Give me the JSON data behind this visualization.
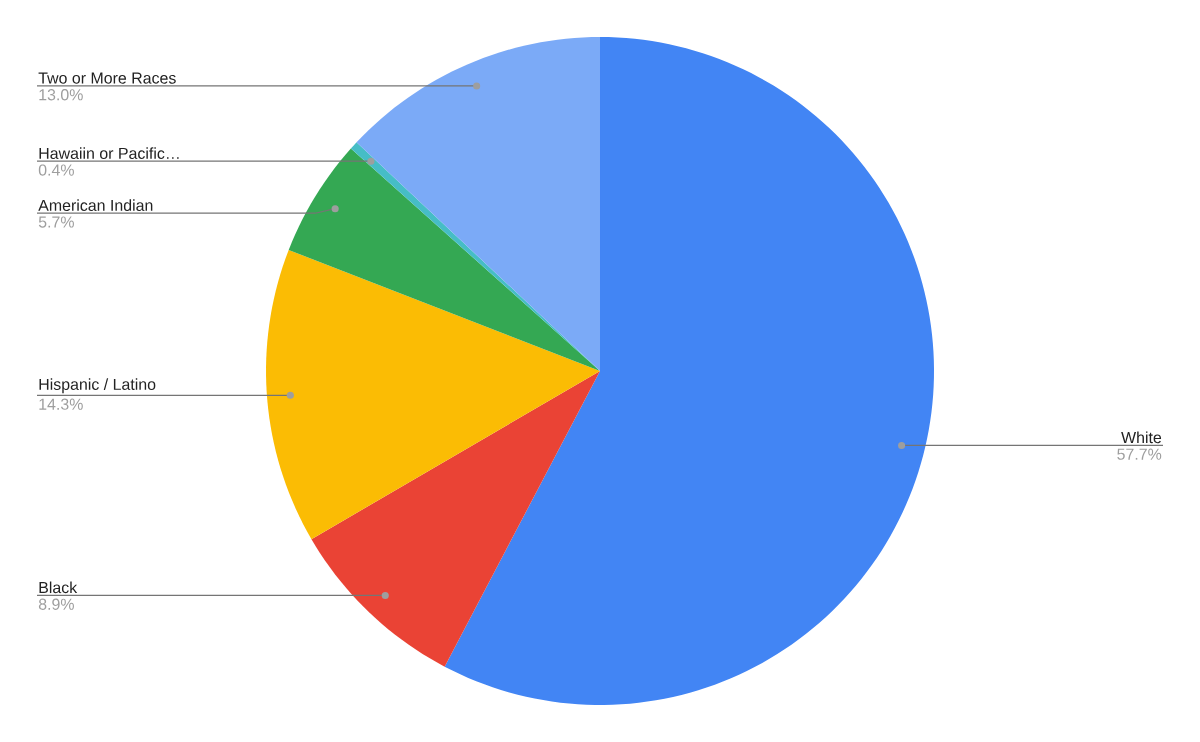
{
  "chart_data": {
    "type": "pie",
    "categories": [
      "White",
      "Black",
      "Hispanic / Latino",
      "American Indian",
      "Hawaiin or Pacific…",
      "Two or More Races"
    ],
    "values": [
      57.7,
      8.9,
      14.3,
      5.7,
      0.4,
      13.0
    ],
    "colors": [
      "#4285f4",
      "#ea4335",
      "#fbbc04",
      "#34a853",
      "#46bdc6",
      "#7baaf7"
    ],
    "value_labels": [
      "57.7%",
      "8.9%",
      "14.3%",
      "5.7%",
      "0.4%",
      "13.0%"
    ]
  }
}
